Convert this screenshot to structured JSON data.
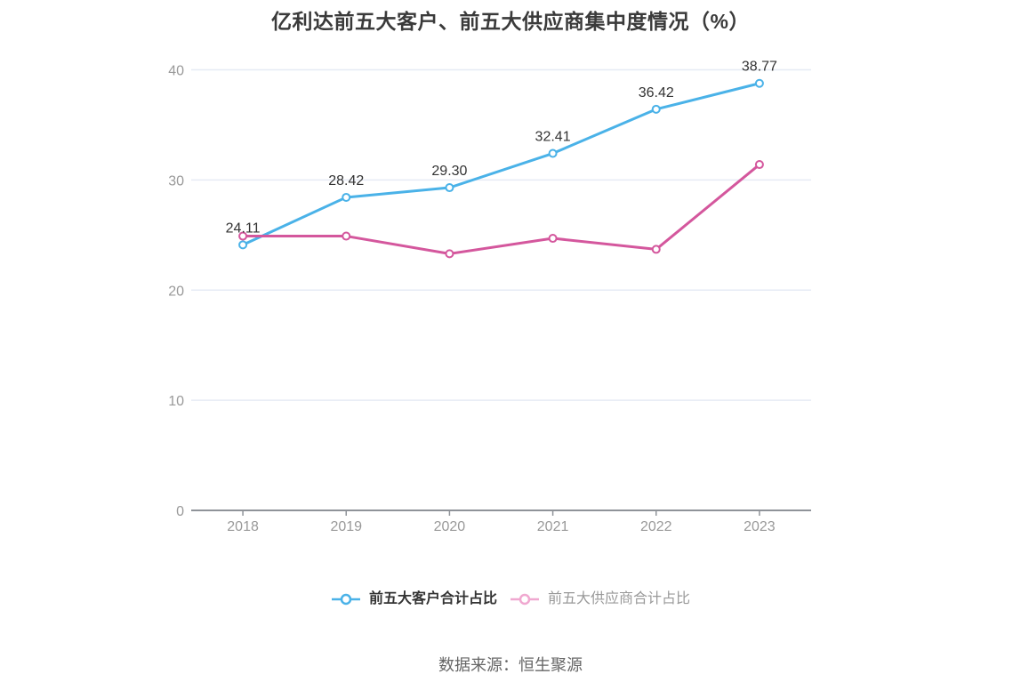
{
  "source": "数据来源：恒生聚源",
  "legend": {
    "items": [
      {
        "label": "前五大客户合计占比",
        "marker_color": "#4ab2e8",
        "text_emphasis": true
      },
      {
        "label": "前五大供应商合计占比",
        "marker_color": "#f0a8d0",
        "text_emphasis": false
      }
    ]
  },
  "chart_data": {
    "type": "line",
    "title": "亿利达前五大客户、前五大供应商集中度情况（%）",
    "categories": [
      "2018",
      "2019",
      "2020",
      "2021",
      "2022",
      "2023"
    ],
    "series": [
      {
        "name": "前五大客户合计占比",
        "color": "#4ab2e8",
        "values": [
          24.11,
          28.42,
          29.3,
          32.41,
          36.42,
          38.77
        ],
        "point_labels": [
          "24.11",
          "28.42",
          "29.30",
          "32.41",
          "36.42",
          "38.77"
        ],
        "labels_shown": true
      },
      {
        "name": "前五大供应商合计占比",
        "color": "#d4579d",
        "values": [
          24.9,
          24.9,
          23.3,
          24.7,
          23.7,
          31.4
        ],
        "point_labels": [],
        "labels_shown": false
      }
    ],
    "xlabel": "",
    "ylabel": "",
    "ylim": [
      0,
      40
    ],
    "yticks": [
      0,
      10,
      20,
      30,
      40
    ],
    "grid": true,
    "legend_position": "bottom"
  },
  "colors": {
    "background": "#ffffff",
    "grid_line": "#e6ebf5",
    "axis_line": "#8f9399",
    "axis_text": "#999999",
    "data_label": "#333333",
    "title_text": "#3a3a3a",
    "source_text": "#666666",
    "marker_fill": "#ffffff"
  }
}
